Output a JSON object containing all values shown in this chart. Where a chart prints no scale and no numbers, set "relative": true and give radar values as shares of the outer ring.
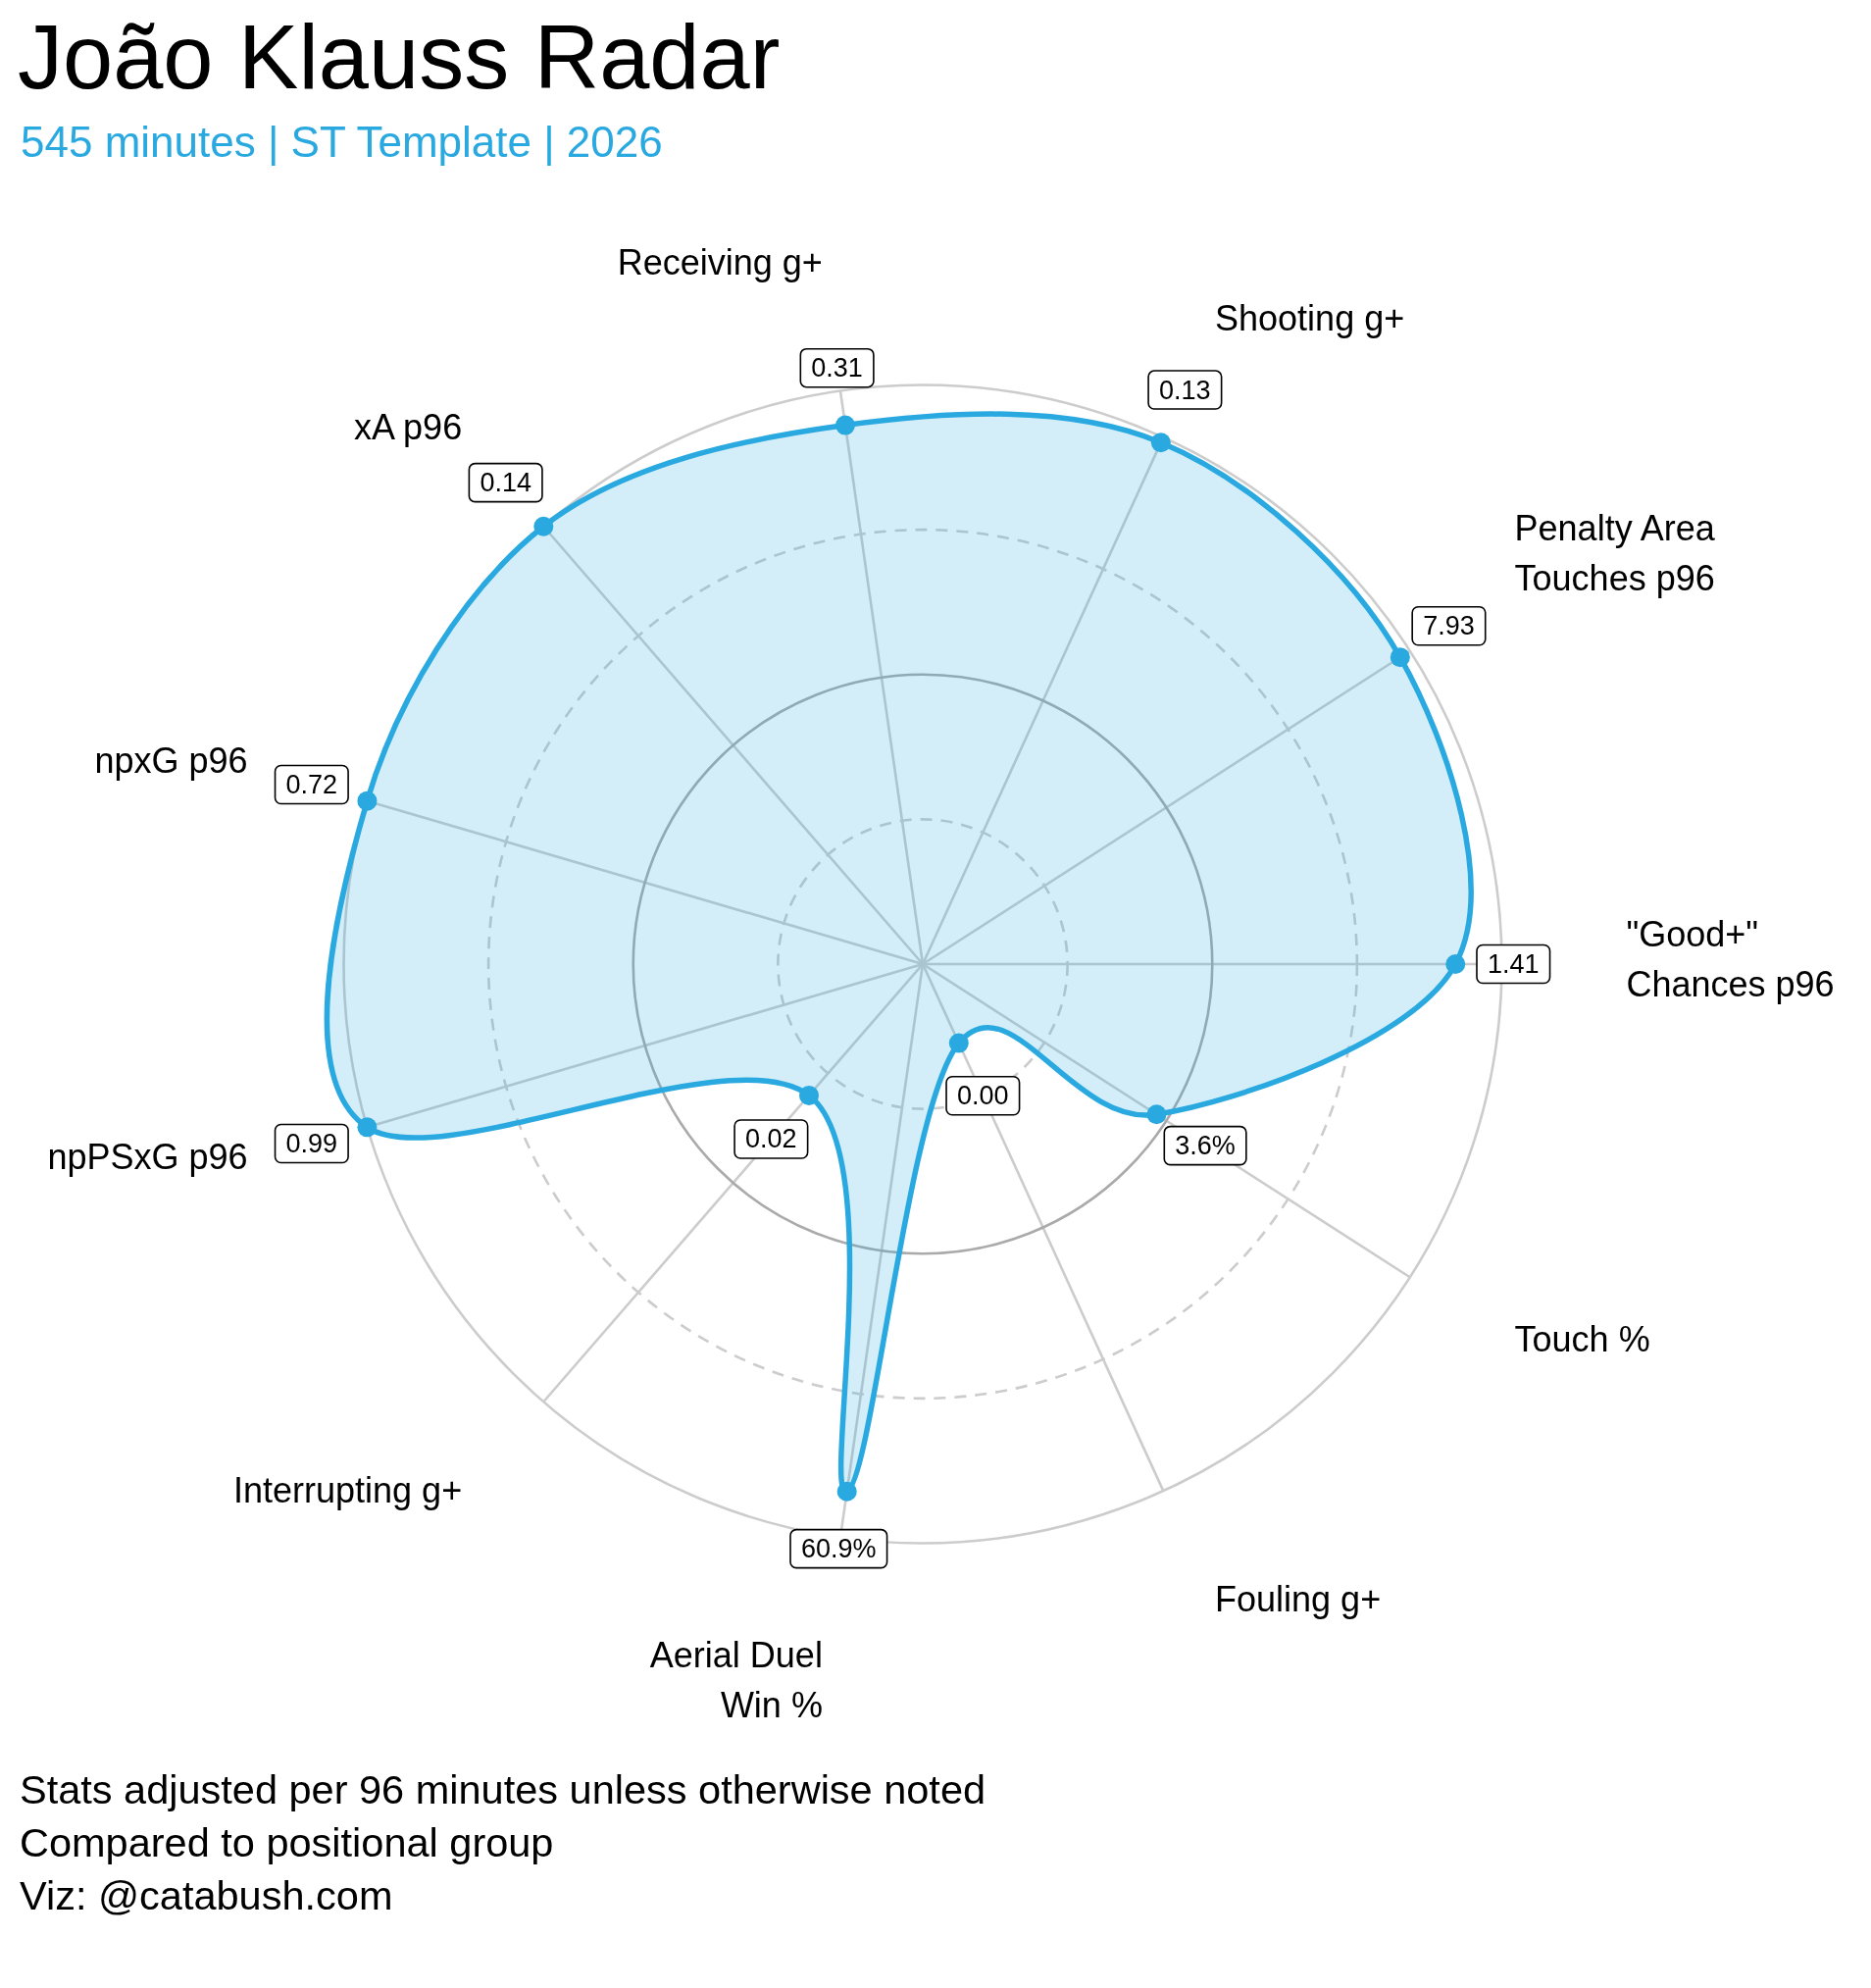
{
  "chart_data": {
    "type": "radar",
    "title": "João Klauss Radar",
    "subtitle": "545 minutes | ST Template | 2026",
    "categories": [
      "Receiving g+",
      "Shooting g+",
      "Penalty Area\nTouches p96",
      "\"Good+\"\nChances p96",
      "Touch %",
      "Fouling g+",
      "Aerial Duel\nWin %",
      "Interrupting g+",
      "npPSxG p96",
      "npxG p96",
      "xA p96"
    ],
    "series": [
      {
        "color": "#29a9e0",
        "values": [
          0.94,
          0.99,
          0.98,
          0.92,
          0.48,
          0.15,
          0.92,
          0.3,
          1.0,
          1.0,
          1.0
        ]
      }
    ],
    "relative": true,
    "grid": true,
    "marker": "circle",
    "annotations": [
      {
        "text": "0.31",
        "x": "Receiving g+"
      },
      {
        "text": "0.13",
        "x": "Shooting g+"
      },
      {
        "text": "7.93",
        "x": "Penalty Area\nTouches p96"
      },
      {
        "text": "1.41",
        "x": "\"Good+\"\nChances p96"
      },
      {
        "text": "3.6%",
        "x": "Touch %"
      },
      {
        "text": "0.00",
        "x": "Fouling g+"
      },
      {
        "text": "60.9%",
        "x": "Aerial Duel\nWin %"
      },
      {
        "text": "0.02",
        "x": "Interrupting g+"
      },
      {
        "text": "0.99",
        "x": "npPSxG p96"
      },
      {
        "text": "0.72",
        "x": "npxG p96"
      },
      {
        "text": "0.14",
        "x": "xA p96"
      },
      "Stats adjusted per 96 minutes unless otherwise noted",
      "Compared to positional group",
      "Viz: @catabush.com"
    ]
  }
}
